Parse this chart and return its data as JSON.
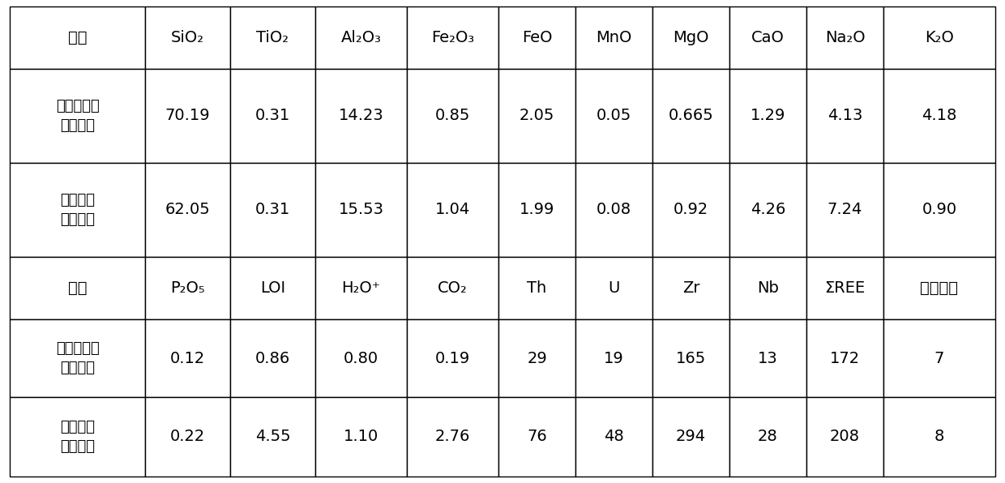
{
  "table1_headers": [
    "类型",
    "SiO₂",
    "TiO₂",
    "Al₂O₃",
    "Fe₂O₃",
    "FeO",
    "MnO",
    "MgO",
    "CaO",
    "Na₂O",
    "K₂O"
  ],
  "table1_headers_render": [
    "类型",
    "SiO₂",
    "TiO₂",
    "Al₂O₃",
    "Fe₂O₃",
    "FeO",
    "MnO",
    "MgO",
    "CaO",
    "Na₂O",
    "K₂O"
  ],
  "table1_row1_label_lines": [
    "普通花岗岩",
    "（均值）"
  ],
  "table1_row1_data": [
    "70.19",
    "0.31",
    "14.23",
    "0.85",
    "2.05",
    "0.05",
    "0.665",
    "1.29",
    "4.13",
    "4.18"
  ],
  "table1_row2_label_lines": [
    "钠交代岩",
    "（均值）"
  ],
  "table1_row2_data": [
    "62.05",
    "0.31",
    "15.53",
    "1.04",
    "1.99",
    "0.08",
    "0.92",
    "4.26",
    "7.24",
    "0.90"
  ],
  "table2_headers_render": [
    "类型",
    "P₂O₅",
    "LOI",
    "H₂O⁺",
    "CO₂",
    "Th",
    "U",
    "Zr",
    "Nb",
    "ΣREE",
    "样品数量"
  ],
  "table2_row1_label_lines": [
    "普通花岗岩",
    "（均值）"
  ],
  "table2_row1_data": [
    "0.12",
    "0.86",
    "0.80",
    "0.19",
    "29",
    "19",
    "165",
    "13",
    "172",
    "7"
  ],
  "table2_row2_label_lines": [
    "钠交代岩",
    "（均值）"
  ],
  "table2_row2_data": [
    "0.22",
    "4.55",
    "1.10",
    "2.76",
    "76",
    "48",
    "294",
    "28",
    "208",
    "8"
  ],
  "bg_color": "#ffffff",
  "border_color": "#000000",
  "text_color": "#000000"
}
